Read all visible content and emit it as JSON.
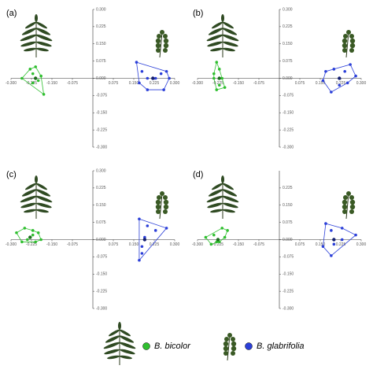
{
  "chart_data": [
    {
      "type": "scatter",
      "title": "(a)",
      "xlim": [
        -0.3,
        0.3
      ],
      "ylim": [
        -0.3,
        0.3
      ],
      "xticks": [
        {
          "value": -0.3,
          "label": "-0.300"
        },
        {
          "value": -0.225,
          "label": "-0.225"
        },
        {
          "value": -0.15,
          "label": "-0.150"
        },
        {
          "value": -0.075,
          "label": "-0.075"
        },
        {
          "value": 0.075,
          "label": "0.075"
        },
        {
          "value": 0.15,
          "label": "0.150"
        },
        {
          "value": 0.225,
          "label": "0.225"
        },
        {
          "value": 0.3,
          "label": "0.300"
        }
      ],
      "yticks": [
        {
          "value": 0.3,
          "label": "0.300"
        },
        {
          "value": 0.225,
          "label": "0.225"
        },
        {
          "value": 0.15,
          "label": "0.150"
        },
        {
          "value": 0.075,
          "label": "0.075"
        },
        {
          "value": 0,
          "label": "0.000"
        },
        {
          "value": -0.075,
          "label": "-0.075"
        },
        {
          "value": -0.15,
          "label": "-0.150"
        },
        {
          "value": -0.225,
          "label": "-0.225"
        },
        {
          "value": -0.3,
          "label": "-0.300"
        }
      ],
      "series": [
        {
          "color": "#2fbf2f",
          "hull": true,
          "x": [
            -0.26,
            -0.23,
            -0.22,
            -0.21,
            -0.2,
            -0.19,
            -0.18,
            -0.22
          ],
          "values": [
            0.0,
            0.04,
            0.02,
            0.05,
            -0.01,
            0.01,
            -0.07,
            -0.02
          ]
        },
        {
          "color": "#1d6e1d",
          "x": [
            -0.21
          ],
          "values": [
            0.0
          ]
        },
        {
          "color": "#2b3fd8",
          "hull": true,
          "x": [
            0.16,
            0.18,
            0.2,
            0.23,
            0.25,
            0.27,
            0.28,
            0.26,
            0.2,
            0.17
          ],
          "values": [
            0.07,
            0.03,
            0.0,
            0.0,
            0.02,
            0.03,
            0.0,
            -0.05,
            -0.05,
            -0.02
          ]
        },
        {
          "color": "#141f70",
          "x": [
            0.22
          ],
          "values": [
            0.0
          ]
        }
      ]
    },
    {
      "type": "scatter",
      "title": "(b)",
      "xlim": [
        -0.3,
        0.3
      ],
      "ylim": [
        -0.3,
        0.3
      ],
      "xticks": [
        {
          "value": -0.3,
          "label": "-0.300"
        },
        {
          "value": -0.225,
          "label": "-0.225"
        },
        {
          "value": -0.15,
          "label": "-0.150"
        },
        {
          "value": -0.075,
          "label": "-0.075"
        },
        {
          "value": 0.075,
          "label": "0.075"
        },
        {
          "value": 0.15,
          "label": "0.150"
        },
        {
          "value": 0.225,
          "label": "0.225"
        },
        {
          "value": 0.3,
          "label": "0.300"
        }
      ],
      "yticks": [
        {
          "value": 0.3,
          "label": "0.300"
        },
        {
          "value": 0.225,
          "label": "0.225"
        },
        {
          "value": 0.15,
          "label": "0.150"
        },
        {
          "value": 0.075,
          "label": "0.075"
        },
        {
          "value": 0,
          "label": "0.000"
        },
        {
          "value": -0.075,
          "label": "-0.075"
        },
        {
          "value": -0.15,
          "label": "-0.150"
        },
        {
          "value": -0.225,
          "label": "-0.225"
        },
        {
          "value": -0.3,
          "label": "-0.300"
        }
      ],
      "series": [
        {
          "color": "#2fbf2f",
          "hull": true,
          "x": [
            -0.23,
            -0.22,
            -0.24,
            -0.21,
            -0.22,
            -0.23,
            -0.2,
            -0.24
          ],
          "values": [
            0.07,
            0.04,
            0.02,
            0.0,
            -0.03,
            -0.05,
            -0.04,
            0.0
          ]
        },
        {
          "color": "#1d6e1d",
          "x": [
            -0.22
          ],
          "values": [
            0.0
          ]
        },
        {
          "color": "#2b3fd8",
          "hull": true,
          "x": [
            0.17,
            0.2,
            0.24,
            0.26,
            0.28,
            0.25,
            0.22,
            0.19,
            0.16
          ],
          "values": [
            0.03,
            0.04,
            0.03,
            0.06,
            0.01,
            -0.02,
            -0.03,
            -0.06,
            -0.01
          ]
        },
        {
          "color": "#141f70",
          "x": [
            0.22
          ],
          "values": [
            0.0
          ]
        }
      ]
    },
    {
      "type": "scatter",
      "title": "(c)",
      "xlim": [
        -0.3,
        0.3
      ],
      "ylim": [
        -0.3,
        0.3
      ],
      "xticks": [
        {
          "value": -0.3,
          "label": "-0.300"
        },
        {
          "value": -0.225,
          "label": "-0.225"
        },
        {
          "value": -0.15,
          "label": "-0.150"
        },
        {
          "value": -0.075,
          "label": "-0.075"
        },
        {
          "value": 0.075,
          "label": "0.075"
        },
        {
          "value": 0.15,
          "label": "0.150"
        },
        {
          "value": 0.225,
          "label": "0.225"
        },
        {
          "value": 0.3,
          "label": "0.300"
        }
      ],
      "yticks": [
        {
          "value": 0.3,
          "label": "0.300"
        },
        {
          "value": 0.225,
          "label": "0.225"
        },
        {
          "value": 0.15,
          "label": "0.150"
        },
        {
          "value": 0.075,
          "label": "0.075"
        },
        {
          "value": 0,
          "label": "0.000"
        },
        {
          "value": -0.075,
          "label": "-0.075"
        },
        {
          "value": -0.15,
          "label": "-0.150"
        },
        {
          "value": -0.225,
          "label": "-0.225"
        },
        {
          "value": -0.3,
          "label": "-0.300"
        }
      ],
      "series": [
        {
          "color": "#2fbf2f",
          "hull": true,
          "x": [
            -0.28,
            -0.25,
            -0.22,
            -0.2,
            -0.19,
            -0.21,
            -0.24,
            -0.26,
            -0.22
          ],
          "values": [
            0.03,
            0.05,
            0.04,
            0.03,
            0.0,
            -0.01,
            0.0,
            -0.01,
            0.02
          ]
        },
        {
          "color": "#1d6e1d",
          "x": [
            -0.23
          ],
          "values": [
            0.01
          ]
        },
        {
          "color": "#2b3fd8",
          "hull": true,
          "x": [
            0.17,
            0.2,
            0.23,
            0.27,
            0.19,
            0.18,
            0.18,
            0.17
          ],
          "values": [
            0.09,
            0.06,
            0.04,
            0.05,
            0.01,
            -0.03,
            -0.06,
            -0.09
          ]
        },
        {
          "color": "#141f70",
          "x": [
            0.19
          ],
          "values": [
            0.0
          ]
        }
      ]
    },
    {
      "type": "scatter",
      "title": "(d)",
      "xlim": [
        -0.3,
        0.3
      ],
      "ylim": [
        -0.3,
        0.3
      ],
      "xticks": [
        {
          "value": -0.3,
          "label": "-0.300"
        },
        {
          "value": -0.225,
          "label": "-0.225"
        },
        {
          "value": -0.15,
          "label": "-0.150"
        },
        {
          "value": -0.075,
          "label": "-0.075"
        },
        {
          "value": 0.075,
          "label": "0.075"
        },
        {
          "value": 0.15,
          "label": "0.150"
        },
        {
          "value": 0.225,
          "label": "0.225"
        },
        {
          "value": 0.3,
          "label": "0.300"
        }
      ],
      "yticks": [
        {
          "value": 0.225,
          "label": "0.225"
        },
        {
          "value": 0.15,
          "label": "0.150"
        },
        {
          "value": 0.075,
          "label": "0.075"
        },
        {
          "value": 0,
          "label": "0.000"
        },
        {
          "value": -0.075,
          "label": "-0.075"
        },
        {
          "value": -0.15,
          "label": "-0.150"
        },
        {
          "value": -0.225,
          "label": "-0.225"
        },
        {
          "value": -0.3,
          "label": "-0.300"
        }
      ],
      "series": [
        {
          "color": "#2fbf2f",
          "hull": true,
          "x": [
            -0.27,
            -0.24,
            -0.21,
            -0.19,
            -0.2,
            -0.22,
            -0.25,
            -0.23
          ],
          "values": [
            0.01,
            0.02,
            0.05,
            0.04,
            0.01,
            -0.01,
            -0.02,
            -0.01
          ]
        },
        {
          "color": "#1d6e1d",
          "x": [
            -0.225
          ],
          "values": [
            0.0
          ]
        },
        {
          "color": "#2b3fd8",
          "hull": true,
          "x": [
            0.17,
            0.19,
            0.23,
            0.28,
            0.23,
            0.2,
            0.19,
            0.16
          ],
          "values": [
            0.07,
            0.04,
            0.05,
            0.02,
            0.0,
            -0.02,
            -0.07,
            -0.03
          ]
        },
        {
          "color": "#141f70",
          "x": [
            0.2
          ],
          "values": [
            0.0
          ]
        }
      ]
    }
  ],
  "legend": {
    "entries": [
      {
        "name": "B. bicolor",
        "color": "#2fbf2f"
      },
      {
        "name": "B. glabrifolia",
        "color": "#2b3fd8"
      }
    ]
  }
}
